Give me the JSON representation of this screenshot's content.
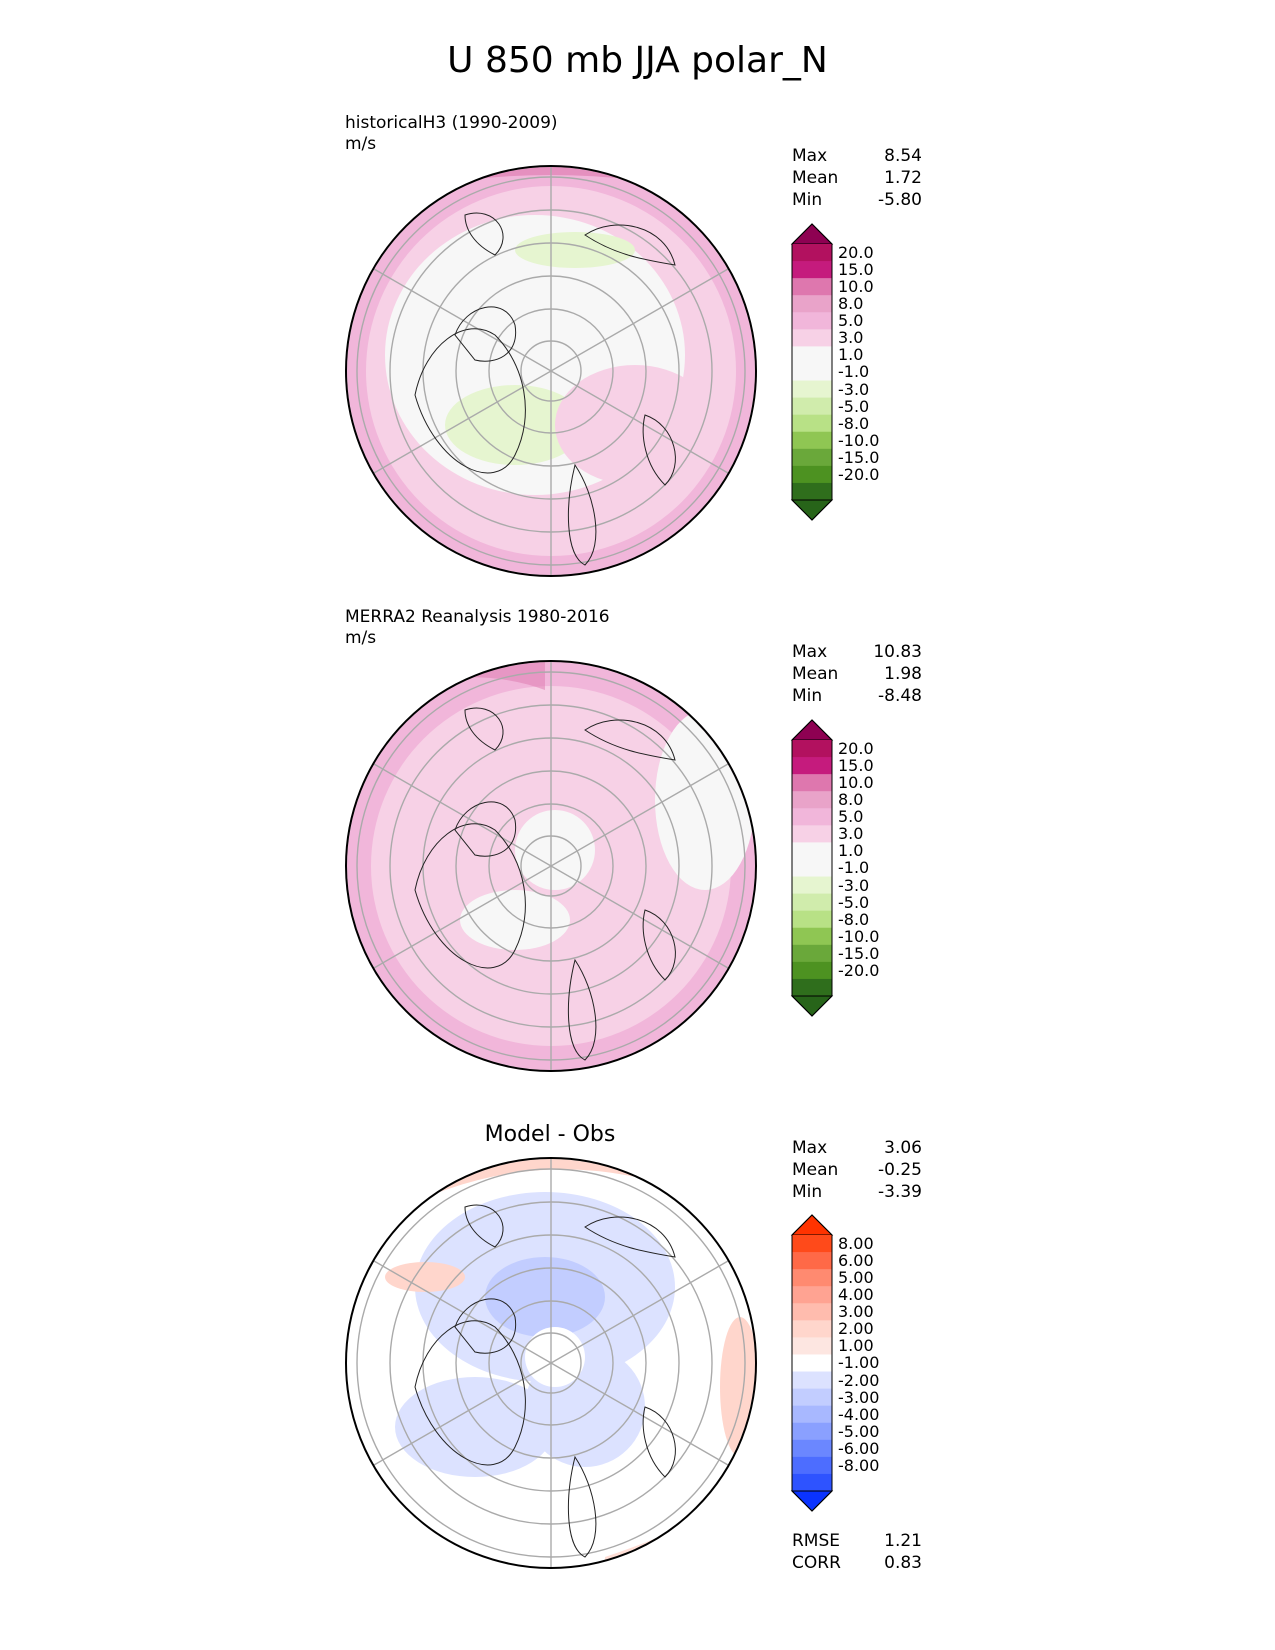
{
  "figure_title": "U 850 mb JJA polar_N",
  "panels": [
    {
      "label_line1": "historicalH3 (1990-2009)",
      "label_line2": "m/s",
      "stats": [
        {
          "name": "Max",
          "value": "8.54"
        },
        {
          "name": "Mean",
          "value": "1.72"
        },
        {
          "name": "Min",
          "value": "-5.80"
        }
      ]
    },
    {
      "label_line1": "MERRA2 Reanalysis 1980-2016",
      "label_line2": "m/s",
      "stats": [
        {
          "name": "Max",
          "value": "10.83"
        },
        {
          "name": "Mean",
          "value": "1.98"
        },
        {
          "name": "Min",
          "value": "-8.48"
        }
      ]
    },
    {
      "title": "Model - Obs",
      "stats": [
        {
          "name": "Max",
          "value": "3.06"
        },
        {
          "name": "Mean",
          "value": "-0.25"
        },
        {
          "name": "Min",
          "value": "-3.39"
        }
      ],
      "metrics": [
        {
          "name": "RMSE",
          "value": "1.21"
        },
        {
          "name": "CORR",
          "value": "0.83"
        }
      ]
    }
  ],
  "colorbar_field": {
    "labels": [
      "20.0",
      "15.0",
      "10.0",
      "8.0",
      "5.0",
      "3.0",
      "1.0",
      "-1.0",
      "-3.0",
      "-5.0",
      "-8.0",
      "-10.0",
      "-15.0",
      "-20.0"
    ],
    "colors": [
      "#8e0152",
      "#b2115f",
      "#c51b7d",
      "#de77ae",
      "#e9a3c9",
      "#f1b6da",
      "#f7d1e6",
      "#f7f7f7",
      "#f7f7f7",
      "#e6f5d0",
      "#d0ecac",
      "#b8e186",
      "#8fc653",
      "#6aa83a",
      "#4d9221",
      "#2f6e1c",
      "#276419"
    ]
  },
  "colorbar_diff": {
    "labels": [
      "8.00",
      "6.00",
      "5.00",
      "4.00",
      "3.00",
      "2.00",
      "1.00",
      "-1.00",
      "-2.00",
      "-3.00",
      "-4.00",
      "-5.00",
      "-6.00",
      "-8.00"
    ],
    "colors": [
      "#ff3300",
      "#ff4a1a",
      "#ff6947",
      "#ff8a70",
      "#ffa392",
      "#ffbcae",
      "#ffd6cc",
      "#fde6e1",
      "#ffffff",
      "#dce2ff",
      "#c2cdff",
      "#a8b8ff",
      "#8aa0ff",
      "#6b87ff",
      "#4d6dff",
      "#2e53ff",
      "#0a33ff"
    ]
  },
  "chart_data": [
    {
      "type": "heatmap",
      "title": "historicalH3 (1990-2009)",
      "units": "m/s",
      "max": 8.54,
      "mean": 1.72,
      "min": -5.8
    },
    {
      "type": "heatmap",
      "title": "MERRA2 Reanalysis 1980-2016",
      "units": "m/s",
      "max": 10.83,
      "mean": 1.98,
      "min": -8.48
    },
    {
      "type": "heatmap",
      "title": "Model - Obs",
      "max": 3.06,
      "mean": -0.25,
      "min": -3.39,
      "rmse": 1.21,
      "corr": 0.83
    }
  ]
}
